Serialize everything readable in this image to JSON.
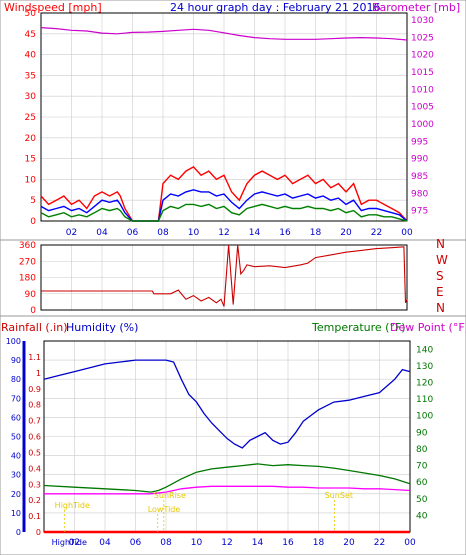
{
  "chart_data": [
    {
      "type": "line",
      "title": "24 hour graph day : February 21 2016",
      "left_axis": {
        "label": "Windspeed [mph]",
        "range": [
          0,
          50
        ],
        "ticks": [
          0,
          5,
          10,
          15,
          20,
          25,
          30,
          35,
          40,
          45,
          50
        ],
        "color": "#ff0000"
      },
      "right_axis": {
        "label": "Barometer [mb]",
        "range": [
          972,
          1032
        ],
        "ticks": [
          975,
          980,
          985,
          990,
          995,
          1000,
          1005,
          1010,
          1015,
          1020,
          1025,
          1030
        ],
        "color": "#cc00cc"
      },
      "x_axis": {
        "range": [
          0,
          24
        ],
        "tick_labels": [
          "02",
          "04",
          "06",
          "08",
          "10",
          "12",
          "14",
          "16",
          "18",
          "20",
          "22",
          "00"
        ]
      },
      "grid": true,
      "series": [
        {
          "axis": "right",
          "color": "#cc00cc",
          "x": [
            0,
            1,
            2,
            3,
            4,
            5,
            6,
            7,
            8,
            9,
            10,
            11,
            12,
            13,
            14,
            15,
            16,
            17,
            18,
            19,
            20,
            21,
            22,
            23,
            24
          ],
          "values": [
            1027.8,
            1027.5,
            1027.0,
            1026.8,
            1026.2,
            1026.0,
            1026.4,
            1026.5,
            1026.7,
            1027.0,
            1027.3,
            1027.0,
            1026.3,
            1025.5,
            1024.9,
            1024.6,
            1024.4,
            1024.4,
            1024.4,
            1024.6,
            1024.8,
            1024.9,
            1024.8,
            1024.6,
            1024.2
          ]
        },
        {
          "color": "#ff0000",
          "x": [
            0,
            0.5,
            1,
            1.5,
            2,
            2.5,
            3,
            3.5,
            4,
            4.5,
            5,
            5.2,
            5.5,
            6,
            7,
            7.7,
            8,
            8.5,
            9,
            9.5,
            10,
            10.5,
            11,
            11.5,
            12,
            12.5,
            13,
            13.5,
            14,
            14.5,
            15,
            15.5,
            16,
            16.5,
            17,
            17.5,
            18,
            18.5,
            19,
            19.5,
            20,
            20.5,
            21,
            21.5,
            22,
            22.5,
            23,
            23.5,
            24
          ],
          "values": [
            6,
            4,
            5,
            6,
            4,
            5,
            3,
            6,
            7,
            6,
            7,
            6,
            3,
            0,
            0,
            0,
            9,
            11,
            10,
            12,
            13,
            11,
            12,
            10,
            11,
            7,
            5,
            9,
            11,
            12,
            11,
            10,
            11,
            9,
            10,
            11,
            9,
            10,
            8,
            9,
            7,
            9,
            4,
            5,
            5,
            4,
            3,
            2,
            0
          ]
        },
        {
          "color": "#0000ff",
          "x": [
            0,
            0.5,
            1,
            1.5,
            2,
            2.5,
            3,
            3.5,
            4,
            4.5,
            5,
            5.2,
            5.5,
            6,
            7,
            7.7,
            8,
            8.5,
            9,
            9.5,
            10,
            10.5,
            11,
            11.5,
            12,
            12.5,
            13,
            13.5,
            14,
            14.5,
            15,
            15.5,
            16,
            16.5,
            17,
            17.5,
            18,
            18.5,
            19,
            19.5,
            20,
            20.5,
            21,
            21.5,
            22,
            22.5,
            23,
            23.5,
            24
          ],
          "values": [
            3.5,
            2.5,
            3,
            3.5,
            2.5,
            3,
            2,
            3.5,
            5,
            4.5,
            5,
            4,
            2,
            0,
            0,
            0,
            5,
            6.5,
            6,
            7,
            7.5,
            7,
            7,
            6,
            6.5,
            4.5,
            3,
            5,
            6.5,
            7,
            6.5,
            6,
            6.5,
            5.5,
            6,
            6.5,
            5.5,
            6,
            5,
            5.5,
            4,
            5,
            2.5,
            3,
            3,
            2.5,
            2,
            1.5,
            0
          ]
        },
        {
          "color": "#008000",
          "x": [
            0,
            0.5,
            1,
            1.5,
            2,
            2.5,
            3,
            3.5,
            4,
            4.5,
            5,
            5.2,
            5.5,
            6,
            7,
            7.7,
            8,
            8.5,
            9,
            9.5,
            10,
            10.5,
            11,
            11.5,
            12,
            12.5,
            13,
            13.5,
            14,
            14.5,
            15,
            15.5,
            16,
            16.5,
            17,
            17.5,
            18,
            18.5,
            19,
            19.5,
            20,
            20.5,
            21,
            21.5,
            22,
            22.5,
            23,
            23.5,
            24
          ],
          "values": [
            2,
            1,
            1.5,
            2,
            1,
            1.5,
            1,
            2,
            3,
            2.5,
            3,
            2.5,
            1,
            0,
            0,
            0,
            2.5,
            3.5,
            3,
            4,
            4,
            3.5,
            4,
            3,
            3.5,
            2,
            1.5,
            3,
            3.5,
            4,
            3.5,
            3,
            3.5,
            3,
            3,
            3.5,
            3,
            3,
            2.5,
            3,
            2,
            2.5,
            1,
            1.5,
            1.5,
            1,
            1,
            0.5,
            0
          ]
        }
      ]
    },
    {
      "type": "line",
      "right_axis_labels": [
        "N",
        "W",
        "S",
        "E",
        "N"
      ],
      "y_axis": {
        "range": [
          0,
          360
        ],
        "ticks": [
          0,
          90,
          180,
          270,
          360
        ]
      },
      "x_axis": {
        "range": [
          0,
          24
        ]
      },
      "grid": true,
      "series": [
        {
          "color": "#cc0000",
          "x": [
            0,
            4,
            7.3,
            7.4,
            8.5,
            9,
            9.5,
            10,
            10.5,
            11,
            11.5,
            11.8,
            12,
            12.3,
            12.6,
            12.9,
            13.1,
            13.3,
            13.5,
            14,
            15,
            16,
            17,
            17.5,
            18,
            19,
            20,
            21,
            22,
            23,
            23.8,
            23.9,
            24
          ],
          "values": [
            105,
            105,
            105,
            90,
            90,
            110,
            60,
            80,
            50,
            70,
            40,
            60,
            20,
            360,
            30,
            360,
            200,
            220,
            250,
            240,
            245,
            235,
            250,
            260,
            290,
            305,
            320,
            330,
            340,
            345,
            350,
            40,
            60
          ]
        }
      ]
    },
    {
      "type": "line",
      "left_labels": {
        "rainfall": "Rainfall (.in)",
        "humidity": "Humidity (%)"
      },
      "right_labels": {
        "temperature": "Temperature (°F)",
        "dew_point": "Dew Point (°F)"
      },
      "left_outer_axis": {
        "range": [
          0,
          1.2
        ],
        "ticks": [
          0,
          0.1,
          0.2,
          0.3,
          0.4,
          0.5,
          0.6,
          0.7,
          0.8,
          0.9,
          1,
          1.1
        ]
      },
      "left_inner_axis": {
        "range": [
          0,
          100
        ],
        "ticks": [
          0,
          10,
          20,
          30,
          40,
          50,
          60,
          70,
          80,
          90,
          100
        ]
      },
      "right_axis": {
        "range": [
          30,
          145
        ],
        "ticks": [
          40,
          50,
          60,
          70,
          80,
          90,
          100,
          110,
          120,
          130,
          140
        ]
      },
      "x_axis": {
        "range": [
          0,
          24
        ],
        "tick_labels": [
          "02",
          "04",
          "06",
          "08",
          "10",
          "12",
          "14",
          "16",
          "18",
          "20",
          "22",
          "00"
        ]
      },
      "grid": true,
      "events": [
        {
          "label": "HighTide",
          "x": 0.7,
          "level": "high"
        },
        {
          "label": "HighTide",
          "x": 0.5,
          "level": "bottom"
        },
        {
          "label": "SunRise",
          "x": 7.2,
          "level": "mid"
        },
        {
          "label": "LowTide",
          "x": 6.8,
          "level": "low"
        },
        {
          "label": "SunSet",
          "x": 18.4,
          "level": "mid"
        }
      ],
      "series": [
        {
          "name": "Humidity (%)",
          "axis": "inner",
          "color": "#0000cc",
          "x": [
            0,
            1,
            2,
            3,
            4,
            5,
            6,
            7,
            8,
            8.5,
            9,
            9.5,
            10,
            10.5,
            11,
            11.5,
            12,
            12.5,
            13,
            13.5,
            14,
            14.5,
            15,
            15.5,
            16,
            16.5,
            17,
            17.5,
            18,
            19,
            20,
            21,
            22,
            23,
            23.5,
            24
          ],
          "values": [
            80,
            82,
            84,
            86,
            88,
            89,
            90,
            90,
            90,
            89,
            80,
            72,
            68,
            62,
            57,
            53,
            49,
            46,
            44,
            48,
            50,
            52,
            48,
            46,
            47,
            52,
            58,
            61,
            64,
            68,
            69,
            71,
            73,
            80,
            85,
            84
          ]
        },
        {
          "name": "Temperature (°F)",
          "axis": "right",
          "color": "#007700",
          "x": [
            0,
            2,
            4,
            6,
            7,
            7.5,
            8,
            9,
            10,
            11,
            12,
            13,
            14,
            15,
            16,
            17,
            18,
            19,
            20,
            21,
            22,
            23,
            24
          ],
          "values": [
            58,
            57,
            56,
            55,
            54,
            55,
            57,
            62,
            66,
            68,
            69,
            70,
            71,
            70,
            70.5,
            70,
            69.5,
            68.5,
            67,
            65.5,
            64,
            62,
            59
          ]
        },
        {
          "name": "Dew Point (°F)",
          "axis": "right",
          "color": "#ff00ff",
          "x": [
            0,
            2,
            4,
            6,
            7,
            8,
            9,
            10,
            11,
            12,
            13,
            14,
            15,
            16,
            17,
            18,
            19,
            20,
            21,
            22,
            23,
            24
          ],
          "values": [
            53,
            53,
            53,
            53,
            53,
            54,
            56,
            57,
            57.5,
            57.5,
            57.5,
            57.5,
            57.5,
            57,
            57,
            56.5,
            56.5,
            56.5,
            56,
            56,
            55.5,
            55
          ]
        },
        {
          "name": "Rainfall (.in)",
          "axis": "outer",
          "color": "#ff0000",
          "x": [
            0,
            24
          ],
          "values": [
            0,
            0
          ]
        }
      ]
    }
  ]
}
